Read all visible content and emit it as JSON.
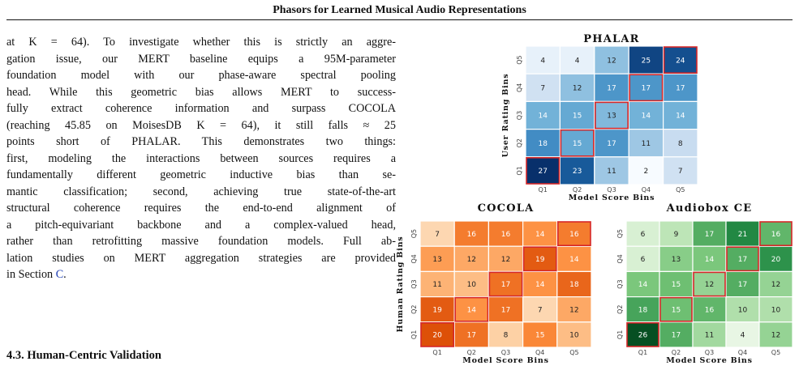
{
  "header": {
    "title": "Phasors for Learned Musical Audio Representations"
  },
  "paragraph_lines": [
    "at K = 64). To investigate whether this is strictly an aggre-",
    "gation issue, our MERT baseline equips a 95M-parameter",
    "foundation model with our phase-aware spectral pooling",
    "head. While this geometric bias allows MERT to success-",
    "fully extract coherence information and surpass COCOLA",
    "(reaching 45.85 on MoisesDB K = 64), it still falls ≈ 25",
    "points short of PHALAR. This demonstrates two things:",
    "first, modeling the interactions between sources requires a",
    "fundamentally different geometric inductive bias than se-",
    "mantic classification; second, achieving true state-of-the-art",
    "structural coherence requires the end-to-end alignment of",
    "a pitch-equivariant backbone and a complex-valued head,",
    "rather than retrofitting massive foundation models. Full ab-",
    "lation studies on MERT aggregation strategies are provided"
  ],
  "paragraph_end": {
    "prefix": "in Section ",
    "ref": "C",
    "suffix": "."
  },
  "section_heading": "4.3. Human-Centric Validation",
  "chart_data": [
    {
      "type": "heatmap",
      "title": "PHALAR",
      "xlabel": "Model Score Bins",
      "ylabel": "User Rating Bins",
      "x_ticks": [
        "Q1",
        "Q2",
        "Q3",
        "Q4",
        "Q5"
      ],
      "y_ticks": [
        "Q5",
        "Q4",
        "Q3",
        "Q2",
        "Q1"
      ],
      "values": [
        [
          4,
          4,
          12,
          25,
          24
        ],
        [
          7,
          12,
          17,
          17,
          17
        ],
        [
          14,
          15,
          13,
          14,
          14
        ],
        [
          18,
          15,
          17,
          11,
          8
        ],
        [
          27,
          23,
          11,
          2,
          7
        ]
      ],
      "highlighted_diagonal": true,
      "colormap": "Blues"
    },
    {
      "type": "heatmap",
      "title": "COCOLA",
      "xlabel": "Model Score Bins",
      "ylabel": "Human Rating Bins",
      "x_ticks": [
        "Q1",
        "Q2",
        "Q3",
        "Q4",
        "Q5"
      ],
      "y_ticks": [
        "Q5",
        "Q4",
        "Q3",
        "Q2",
        "Q1"
      ],
      "values": [
        [
          7,
          16,
          16,
          14,
          16
        ],
        [
          13,
          12,
          12,
          19,
          14
        ],
        [
          11,
          10,
          17,
          14,
          18
        ],
        [
          19,
          14,
          17,
          7,
          12
        ],
        [
          20,
          17,
          8,
          15,
          10
        ]
      ],
      "highlighted_diagonal": true,
      "colormap": "Oranges"
    },
    {
      "type": "heatmap",
      "title": "Audiobox CE",
      "xlabel": "Model Score Bins",
      "ylabel": "",
      "x_ticks": [
        "Q1",
        "Q2",
        "Q3",
        "Q4",
        "Q5"
      ],
      "y_ticks": [
        "Q5",
        "Q4",
        "Q3",
        "Q2",
        "Q1"
      ],
      "values": [
        [
          6,
          9,
          17,
          21,
          16
        ],
        [
          6,
          13,
          14,
          17,
          20
        ],
        [
          14,
          15,
          12,
          17,
          12
        ],
        [
          18,
          15,
          16,
          10,
          10
        ],
        [
          26,
          17,
          11,
          4,
          12
        ]
      ],
      "highlighted_diagonal": true,
      "colormap": "Greens"
    }
  ],
  "colors": {
    "highlight": "#d62728",
    "min_value": 2,
    "max_value": 27
  }
}
